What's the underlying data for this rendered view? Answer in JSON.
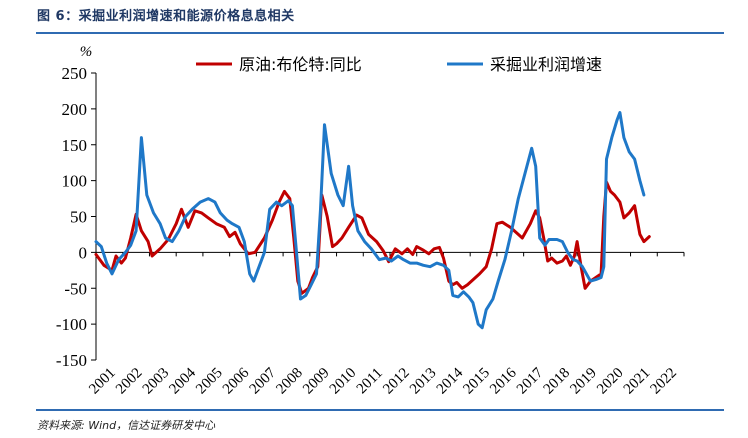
{
  "figure": {
    "title": "图 6：采掘业利润增速和能源价格息息相关",
    "source": "资料来源: Wind，信达证券研发中心"
  },
  "chart_data": {
    "type": "line",
    "ylabel": "%",
    "ylim": [
      -150,
      250
    ],
    "yticks": [
      250,
      200,
      150,
      100,
      50,
      0,
      -50,
      -100,
      -150
    ],
    "xlim": [
      2001.0,
      2023.0
    ],
    "year_labels": [
      "2001",
      "2002",
      "2003",
      "2004",
      "2005",
      "2006",
      "2007",
      "2008",
      "2009",
      "2010",
      "2011",
      "2012",
      "2013",
      "2014",
      "2015",
      "2016",
      "2017",
      "2018",
      "2019",
      "2020",
      "2021",
      "2022"
    ],
    "legend_position": "top",
    "series": [
      {
        "name": "原油:布伦特:同比",
        "color": "#c00000",
        "points": [
          [
            2001.0,
            -3
          ],
          [
            2001.3,
            -18
          ],
          [
            2001.6,
            -25
          ],
          [
            2001.75,
            -5
          ],
          [
            2001.95,
            -15
          ],
          [
            2002.1,
            -8
          ],
          [
            2002.3,
            20
          ],
          [
            2002.5,
            53
          ],
          [
            2002.7,
            30
          ],
          [
            2002.95,
            15
          ],
          [
            2003.1,
            -5
          ],
          [
            2003.4,
            5
          ],
          [
            2003.7,
            18
          ],
          [
            2004.0,
            40
          ],
          [
            2004.2,
            60
          ],
          [
            2004.45,
            35
          ],
          [
            2004.7,
            58
          ],
          [
            2004.95,
            55
          ],
          [
            2005.2,
            48
          ],
          [
            2005.5,
            40
          ],
          [
            2005.8,
            35
          ],
          [
            2006.0,
            22
          ],
          [
            2006.2,
            28
          ],
          [
            2006.4,
            12
          ],
          [
            2006.7,
            -2
          ],
          [
            2006.95,
            0
          ],
          [
            2007.3,
            20
          ],
          [
            2007.6,
            45
          ],
          [
            2007.85,
            70
          ],
          [
            2008.05,
            85
          ],
          [
            2008.25,
            75
          ],
          [
            2008.4,
            20
          ],
          [
            2008.55,
            -40
          ],
          [
            2008.7,
            -57
          ],
          [
            2008.95,
            -50
          ],
          [
            2009.1,
            -35
          ],
          [
            2009.3,
            -20
          ],
          [
            2009.45,
            80
          ],
          [
            2009.65,
            50
          ],
          [
            2009.85,
            8
          ],
          [
            2010.0,
            12
          ],
          [
            2010.2,
            20
          ],
          [
            2010.45,
            35
          ],
          [
            2010.75,
            52
          ],
          [
            2010.95,
            48
          ],
          [
            2011.2,
            25
          ],
          [
            2011.5,
            15
          ],
          [
            2011.75,
            2
          ],
          [
            2011.95,
            -13
          ],
          [
            2012.2,
            5
          ],
          [
            2012.45,
            -2
          ],
          [
            2012.65,
            5
          ],
          [
            2012.85,
            -3
          ],
          [
            2013.0,
            8
          ],
          [
            2013.25,
            3
          ],
          [
            2013.45,
            -2
          ],
          [
            2013.65,
            5
          ],
          [
            2013.85,
            7
          ],
          [
            2014.0,
            -8
          ],
          [
            2014.2,
            -40
          ],
          [
            2014.35,
            -45
          ],
          [
            2014.5,
            -42
          ],
          [
            2014.7,
            -50
          ],
          [
            2014.9,
            -45
          ],
          [
            2015.05,
            -40
          ],
          [
            2015.35,
            -30
          ],
          [
            2015.6,
            -20
          ],
          [
            2015.8,
            5
          ],
          [
            2016.0,
            40
          ],
          [
            2016.2,
            42
          ],
          [
            2016.5,
            35
          ],
          [
            2016.8,
            25
          ],
          [
            2016.95,
            20
          ],
          [
            2017.25,
            40
          ],
          [
            2017.45,
            58
          ],
          [
            2017.6,
            48
          ],
          [
            2017.75,
            20
          ],
          [
            2017.9,
            -12
          ],
          [
            2018.05,
            -8
          ],
          [
            2018.25,
            -15
          ],
          [
            2018.45,
            -12
          ],
          [
            2018.6,
            -5
          ],
          [
            2018.75,
            -18
          ],
          [
            2018.9,
            -5
          ],
          [
            2019.0,
            15
          ],
          [
            2019.15,
            -20
          ],
          [
            2019.3,
            -50
          ],
          [
            2019.5,
            -40
          ],
          [
            2019.7,
            -35
          ],
          [
            2019.9,
            -30
          ],
          [
            2020.0,
            50
          ],
          [
            2020.1,
            98
          ],
          [
            2020.25,
            85
          ],
          [
            2020.4,
            80
          ],
          [
            2020.6,
            70
          ],
          [
            2020.75,
            48
          ],
          [
            2020.95,
            55
          ],
          [
            2021.15,
            65
          ],
          [
            2021.35,
            25
          ],
          [
            2021.5,
            15
          ],
          [
            2021.7,
            22
          ]
        ]
      },
      {
        "name": "采掘业利润增速",
        "color": "#1f78c8",
        "points": [
          [
            2001.0,
            15
          ],
          [
            2001.2,
            8
          ],
          [
            2001.4,
            -15
          ],
          [
            2001.6,
            -30
          ],
          [
            2001.85,
            -10
          ],
          [
            2002.1,
            0
          ],
          [
            2002.3,
            10
          ],
          [
            2002.5,
            30
          ],
          [
            2002.7,
            160
          ],
          [
            2002.9,
            80
          ],
          [
            2003.15,
            55
          ],
          [
            2003.4,
            40
          ],
          [
            2003.6,
            20
          ],
          [
            2003.85,
            15
          ],
          [
            2004.1,
            30
          ],
          [
            2004.35,
            50
          ],
          [
            2004.6,
            60
          ],
          [
            2004.9,
            70
          ],
          [
            2005.2,
            75
          ],
          [
            2005.45,
            70
          ],
          [
            2005.65,
            55
          ],
          [
            2005.9,
            45
          ],
          [
            2006.1,
            40
          ],
          [
            2006.35,
            35
          ],
          [
            2006.55,
            15
          ],
          [
            2006.75,
            -30
          ],
          [
            2006.9,
            -40
          ],
          [
            2007.05,
            -25
          ],
          [
            2007.3,
            0
          ],
          [
            2007.5,
            60
          ],
          [
            2007.75,
            70
          ],
          [
            2007.95,
            65
          ],
          [
            2008.2,
            72
          ],
          [
            2008.35,
            65
          ],
          [
            2008.5,
            0
          ],
          [
            2008.65,
            -65
          ],
          [
            2008.85,
            -60
          ],
          [
            2009.05,
            -45
          ],
          [
            2009.25,
            -30
          ],
          [
            2009.4,
            60
          ],
          [
            2009.55,
            178
          ],
          [
            2009.8,
            110
          ],
          [
            2010.05,
            80
          ],
          [
            2010.25,
            65
          ],
          [
            2010.45,
            120
          ],
          [
            2010.6,
            65
          ],
          [
            2010.8,
            30
          ],
          [
            2011.05,
            15
          ],
          [
            2011.3,
            5
          ],
          [
            2011.6,
            -10
          ],
          [
            2011.85,
            -8
          ],
          [
            2012.05,
            -12
          ],
          [
            2012.3,
            -5
          ],
          [
            2012.5,
            -10
          ],
          [
            2012.75,
            -15
          ],
          [
            2013.0,
            -15
          ],
          [
            2013.25,
            -18
          ],
          [
            2013.5,
            -20
          ],
          [
            2013.75,
            -15
          ],
          [
            2014.0,
            -18
          ],
          [
            2014.2,
            -25
          ],
          [
            2014.35,
            -60
          ],
          [
            2014.55,
            -62
          ],
          [
            2014.75,
            -55
          ],
          [
            2014.95,
            -62
          ],
          [
            2015.1,
            -70
          ],
          [
            2015.3,
            -100
          ],
          [
            2015.45,
            -105
          ],
          [
            2015.6,
            -80
          ],
          [
            2015.85,
            -65
          ],
          [
            2016.05,
            -40
          ],
          [
            2016.3,
            -10
          ],
          [
            2016.55,
            30
          ],
          [
            2016.8,
            75
          ],
          [
            2017.05,
            110
          ],
          [
            2017.3,
            145
          ],
          [
            2017.45,
            120
          ],
          [
            2017.6,
            20
          ],
          [
            2017.8,
            10
          ],
          [
            2017.95,
            18
          ],
          [
            2018.25,
            18
          ],
          [
            2018.45,
            15
          ],
          [
            2018.65,
            0
          ],
          [
            2018.85,
            -10
          ],
          [
            2019.0,
            -12
          ],
          [
            2019.2,
            -20
          ],
          [
            2019.35,
            -30
          ],
          [
            2019.5,
            -40
          ],
          [
            2019.7,
            -38
          ],
          [
            2019.9,
            -35
          ],
          [
            2020.0,
            -20
          ],
          [
            2020.1,
            130
          ],
          [
            2020.3,
            160
          ],
          [
            2020.5,
            185
          ],
          [
            2020.6,
            195
          ],
          [
            2020.75,
            160
          ],
          [
            2020.95,
            140
          ],
          [
            2021.15,
            130
          ],
          [
            2021.35,
            100
          ],
          [
            2021.5,
            80
          ]
        ]
      }
    ]
  }
}
